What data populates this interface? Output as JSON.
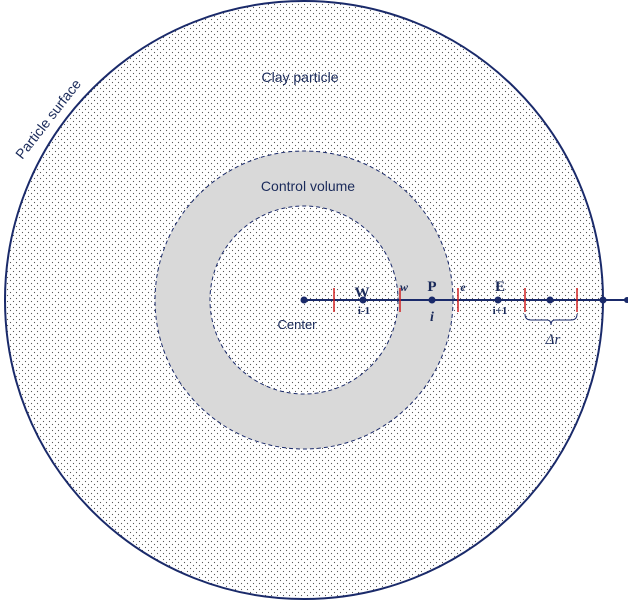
{
  "labels": {
    "surface": "Particle surface",
    "particle": "Clay particle",
    "control_volume": "Control volume",
    "center": "Center",
    "W": "W",
    "W_index": "i-1",
    "w": "w",
    "P": "P",
    "P_index": "i",
    "e": "e",
    "E": "E",
    "E_index": "i+1",
    "dr": "Δr"
  }
}
